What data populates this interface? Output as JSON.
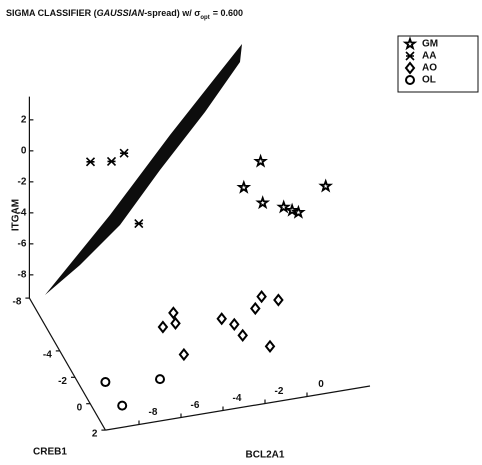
{
  "chart_data": {
    "type": "scatter3d",
    "title": {
      "prefix": "SIGMA CLASSIFIER (",
      "italic": "GAUSSIAN",
      "suffix": "-spread) w/ σ",
      "subscript": "opt",
      "tail": "= 0.600"
    },
    "xlabel": "BCL2A1",
    "ylabel": "CREB1",
    "zlabel": "ITGAM",
    "xlim": [
      -9.6,
      3
    ],
    "ylim": [
      -8,
      2
    ],
    "zlim": [
      -9.5,
      3.5
    ],
    "xticks": [
      -8,
      -6,
      -4,
      -2,
      0
    ],
    "yticks": [
      -8,
      -4,
      -2,
      0,
      2
    ],
    "zticks": [
      2,
      0,
      -2,
      -4,
      -6,
      -8
    ],
    "legend": "top-right",
    "series": [
      {
        "name": "GM",
        "color": "#000000",
        "marker": "star",
        "x": [
          -1.2,
          -0.4,
          -0.3,
          0.7,
          1.1,
          1.4,
          2.7
        ],
        "y": [
          -3,
          -3,
          -3,
          -3,
          -3,
          -3,
          -3
        ],
        "z": [
          0.0,
          1.5,
          -1.2,
          -1.7,
          -2.0,
          -2.2,
          -0.8
        ]
      },
      {
        "name": "AA",
        "color": "#000000",
        "marker": "cross",
        "x": [
          -8.5,
          -7.5,
          -6.9,
          -6.2
        ],
        "y": [
          -3,
          -3,
          -3,
          -3
        ],
        "z": [
          3.3,
          3.1,
          3.5,
          -1.2
        ]
      },
      {
        "name": "AO",
        "color": "#000000",
        "marker": "diamond",
        "x": [
          -6.0,
          -6.5,
          -5.9,
          -5.5,
          -3.7,
          -3.1,
          -2.7,
          -2.1,
          -1.8,
          -1.0,
          -1.4
        ],
        "y": [
          1,
          1,
          1,
          1,
          1,
          1,
          1,
          1,
          1,
          1,
          1
        ],
        "z": [
          -3.6,
          -4.4,
          -4.3,
          -6.4,
          -4.5,
          -5.0,
          -5.8,
          -4.2,
          -3.5,
          -3.9,
          -6.8
        ]
      },
      {
        "name": "OL",
        "color": "#000000",
        "marker": "ring",
        "x": [
          -9.6,
          -8.8,
          -7.0
        ],
        "y": [
          2,
          2,
          2
        ],
        "z": [
          -6.4,
          -8.1,
          -6.8
        ]
      }
    ]
  }
}
